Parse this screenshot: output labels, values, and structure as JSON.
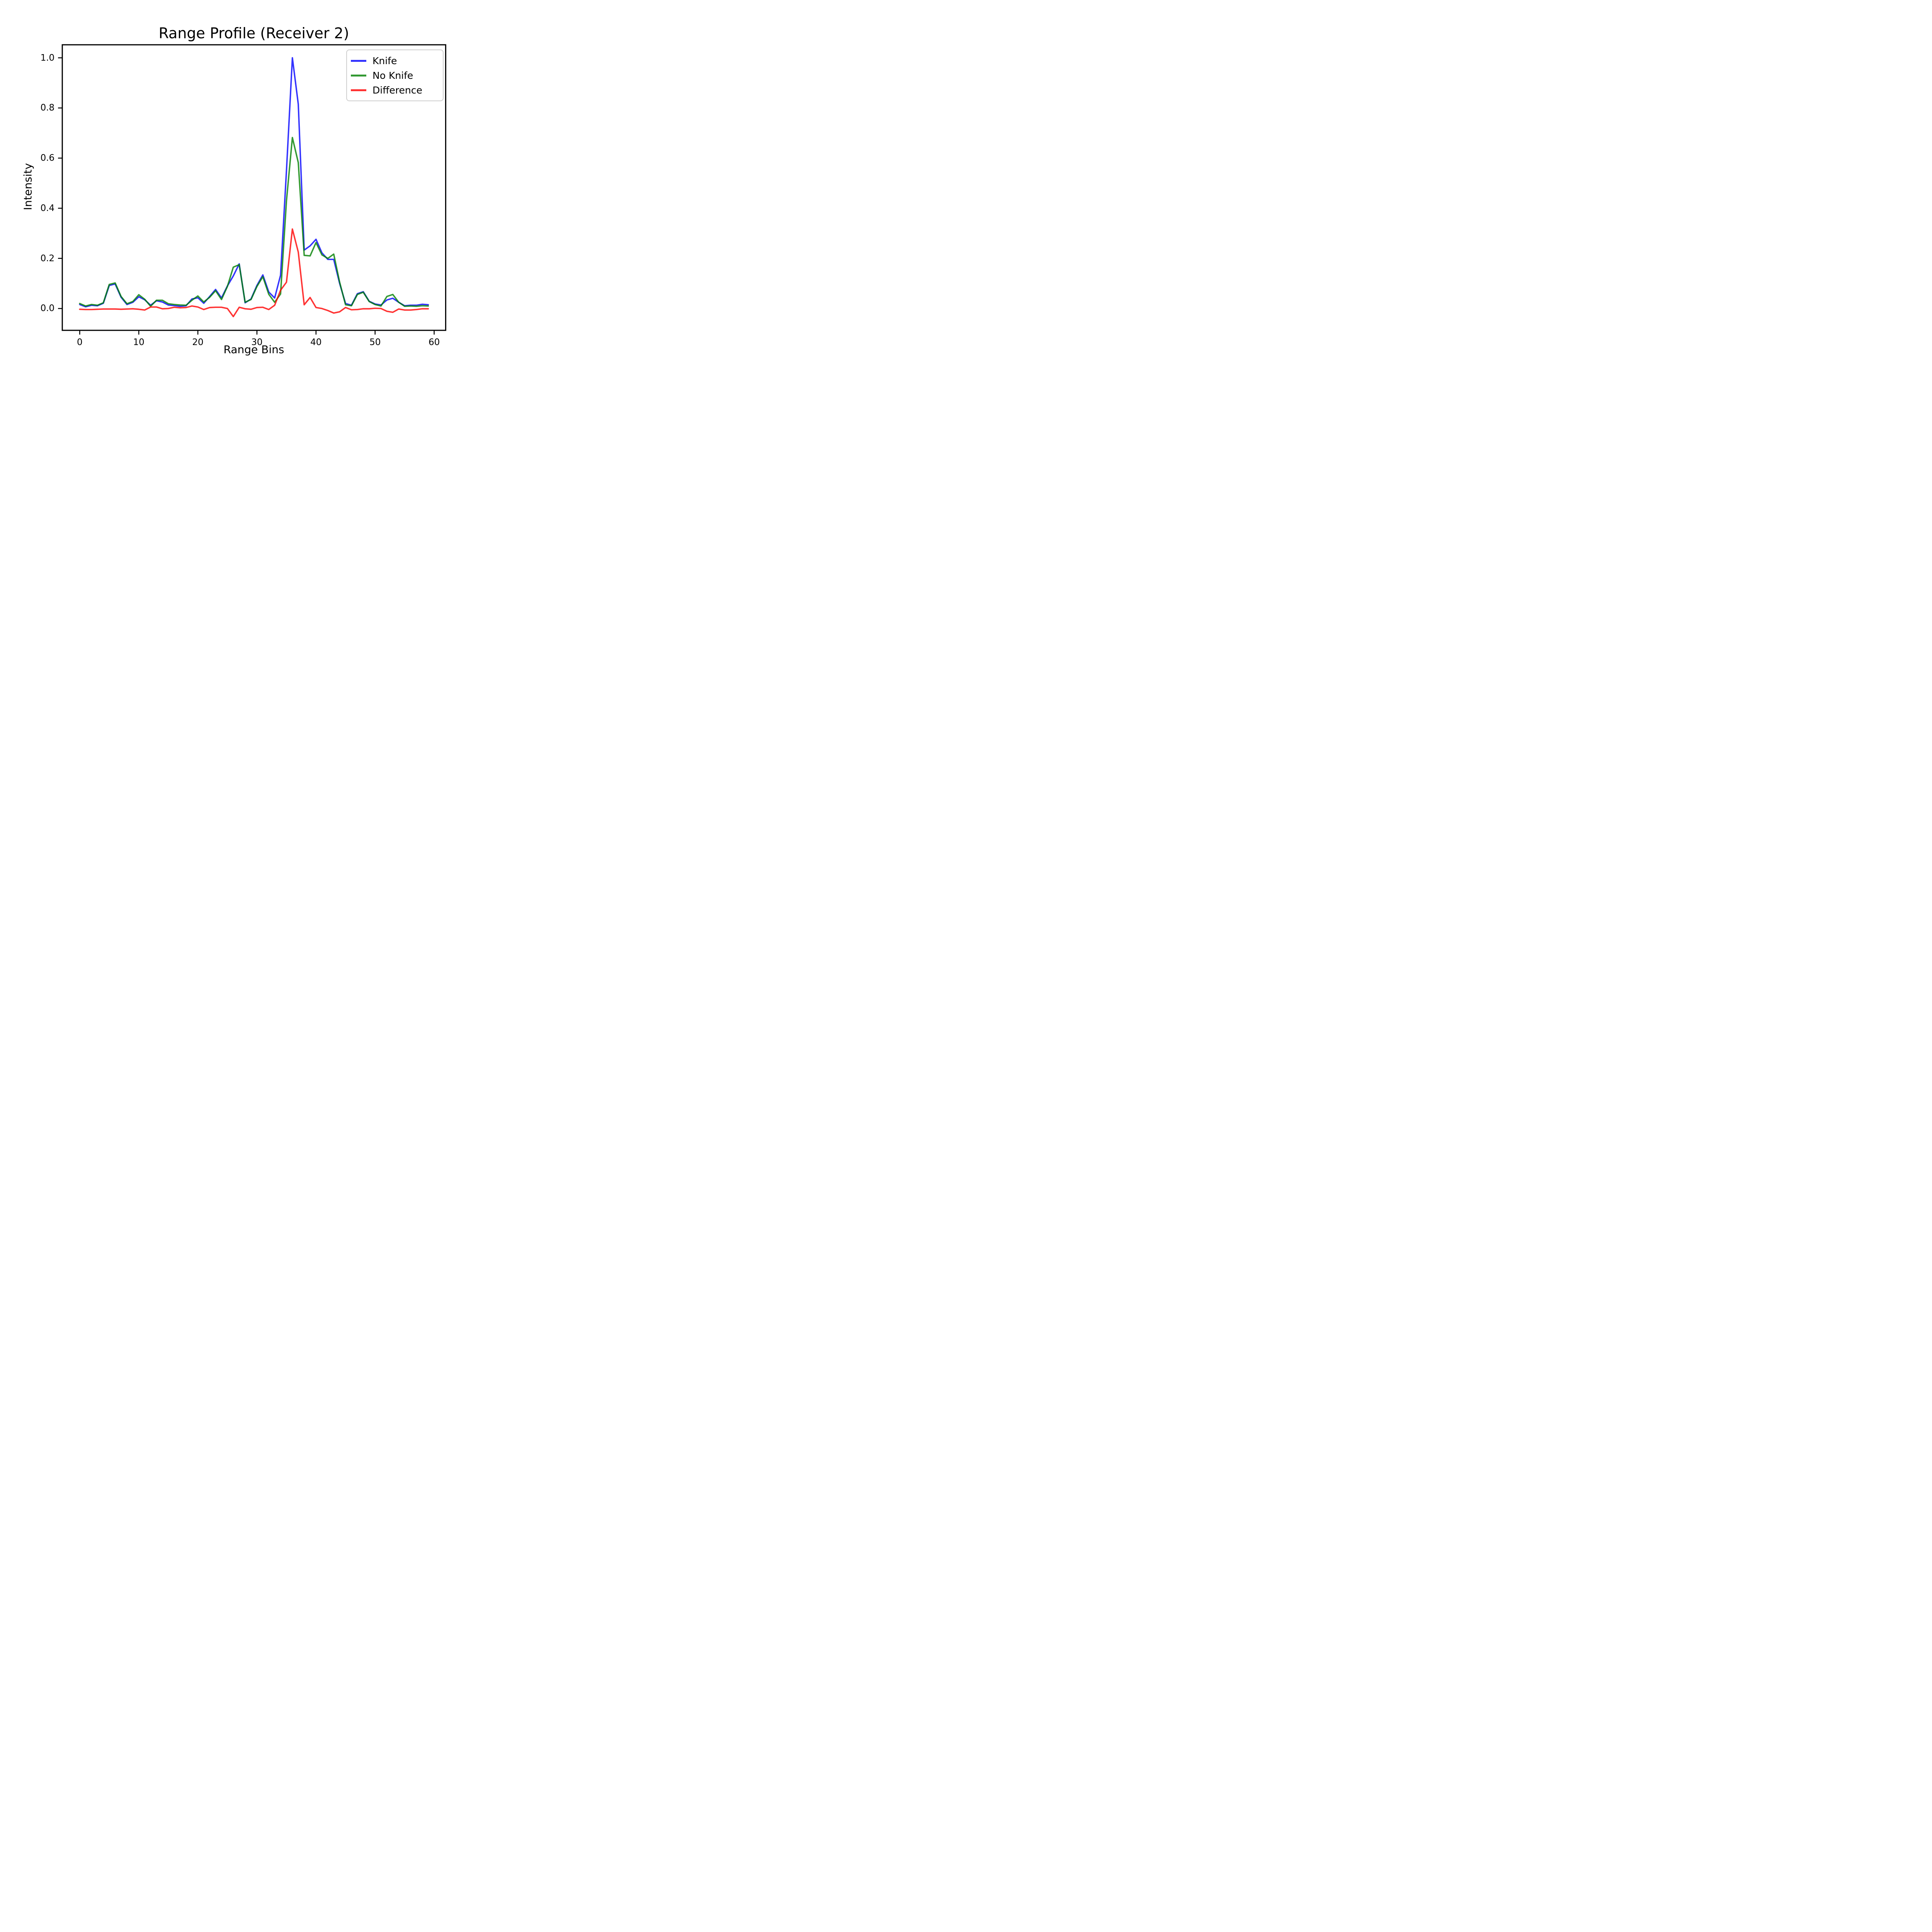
{
  "title": "Range Profile (Receiver 2)",
  "chart_data": {
    "type": "line",
    "title": "Range Profile (Receiver 2)",
    "xlabel": "Range Bins",
    "ylabel": "Intensity",
    "x_start": 0,
    "x_step": 1,
    "n_points": 60,
    "xticks": [
      0,
      10,
      20,
      30,
      40,
      50,
      60
    ],
    "yticks": [
      0.0,
      0.2,
      0.4,
      0.6,
      0.8,
      1.0
    ],
    "ytick_labels": [
      "0.0",
      "0.2",
      "0.4",
      "0.6",
      "0.8",
      "1.0"
    ],
    "xlim": [
      -2.95,
      61.95
    ],
    "ylim": [
      -0.087,
      1.052
    ],
    "grid": false,
    "legend_position": "upper right",
    "colors": {
      "knife": "#0000ff",
      "no_knife": "#008000",
      "difference": "#ff0000",
      "line_alpha": 0.8,
      "spine": "#000000",
      "legend_border": "#cfcfcf",
      "background": "#ffffff"
    },
    "series": [
      {
        "name": "Knife",
        "color": "#0000ff",
        "values": [
          0.016,
          0.007,
          0.013,
          0.011,
          0.021,
          0.092,
          0.098,
          0.045,
          0.016,
          0.025,
          0.047,
          0.035,
          0.013,
          0.031,
          0.026,
          0.014,
          0.012,
          0.009,
          0.011,
          0.038,
          0.043,
          0.021,
          0.048,
          0.076,
          0.042,
          0.09,
          0.13,
          0.178,
          0.023,
          0.038,
          0.092,
          0.134,
          0.066,
          0.042,
          0.133,
          0.55,
          1.0,
          0.815,
          0.233,
          0.25,
          0.276,
          0.222,
          0.196,
          0.196,
          0.1,
          0.02,
          0.013,
          0.059,
          0.067,
          0.029,
          0.018,
          0.014,
          0.034,
          0.041,
          0.025,
          0.011,
          0.013,
          0.013,
          0.017,
          0.015
        ]
      },
      {
        "name": "No Knife",
        "color": "#008000",
        "values": [
          0.02,
          0.01,
          0.016,
          0.013,
          0.023,
          0.096,
          0.102,
          0.048,
          0.019,
          0.028,
          0.055,
          0.037,
          0.009,
          0.033,
          0.033,
          0.019,
          0.016,
          0.014,
          0.013,
          0.033,
          0.05,
          0.026,
          0.045,
          0.071,
          0.036,
          0.088,
          0.165,
          0.175,
          0.025,
          0.036,
          0.088,
          0.127,
          0.057,
          0.025,
          0.058,
          0.43,
          0.682,
          0.582,
          0.212,
          0.21,
          0.263,
          0.214,
          0.2,
          0.217,
          0.105,
          0.015,
          0.011,
          0.056,
          0.065,
          0.028,
          0.016,
          0.01,
          0.048,
          0.056,
          0.025,
          0.009,
          0.01,
          0.009,
          0.011,
          0.01
        ]
      },
      {
        "name": "Difference",
        "color": "#ff0000",
        "values": [
          -0.003,
          -0.004,
          -0.004,
          -0.003,
          -0.002,
          -0.002,
          -0.002,
          -0.003,
          -0.002,
          -0.001,
          -0.003,
          -0.006,
          0.006,
          0.006,
          -0.001,
          0.0,
          0.005,
          0.003,
          0.004,
          0.01,
          0.006,
          -0.004,
          0.004,
          0.005,
          0.005,
          0.0,
          -0.032,
          0.005,
          -0.001,
          -0.003,
          0.004,
          0.005,
          -0.004,
          0.013,
          0.073,
          0.105,
          0.317,
          0.225,
          0.015,
          0.044,
          0.004,
          0.0,
          -0.008,
          -0.018,
          -0.013,
          0.004,
          -0.005,
          -0.004,
          -0.001,
          -0.001,
          0.001,
          0.0,
          -0.011,
          -0.015,
          -0.002,
          -0.006,
          -0.006,
          -0.004,
          -0.001,
          -0.001
        ]
      }
    ]
  }
}
